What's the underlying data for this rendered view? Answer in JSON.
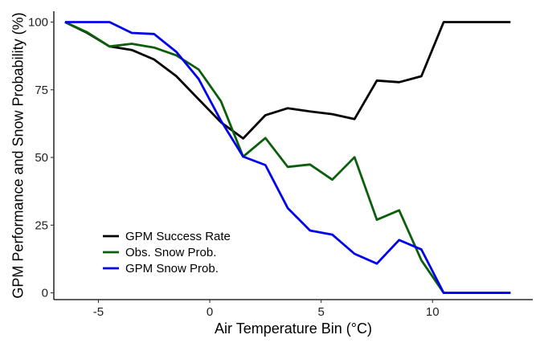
{
  "chart_data": {
    "type": "line",
    "title": "",
    "xlabel": "Air Temperature Bin (°C)",
    "ylabel": "GPM Performance and Snow Probability (%)",
    "xlim": [
      -7,
      14.5
    ],
    "ylim": [
      -2.5,
      104
    ],
    "x_ticks": [
      -5,
      0,
      5,
      10
    ],
    "y_ticks": [
      0,
      25,
      50,
      75,
      100
    ],
    "grid": false,
    "legend_position": "bottom-left",
    "x": [
      -6.5,
      -5.5,
      -4.5,
      -3.5,
      -2.5,
      -1.5,
      -0.5,
      0.5,
      1.5,
      2.5,
      3.5,
      4.5,
      5.5,
      6.5,
      7.5,
      8.5,
      9.5,
      10.5,
      11.5,
      12.5,
      13.5
    ],
    "series": [
      {
        "name": "GPM Success Rate",
        "color": "#000000",
        "values": [
          100,
          96,
          91,
          89.7,
          86.2,
          80,
          71.5,
          63,
          57,
          65.6,
          68.2,
          67,
          66,
          64.2,
          78.4,
          77.8,
          80,
          100,
          100,
          100,
          100
        ]
      },
      {
        "name": "Obs. Snow Prob.",
        "color": "#0b5e0b",
        "values": [
          100,
          96.2,
          91,
          92,
          90.6,
          87.7,
          82.5,
          70.8,
          50.3,
          57.2,
          46.5,
          47.4,
          41.8,
          50.1,
          27,
          30.5,
          12,
          0,
          0,
          0,
          0
        ]
      },
      {
        "name": "GPM Snow Prob.",
        "color": "#0000ee",
        "values": [
          100,
          100,
          100,
          96,
          95.6,
          89,
          79,
          63.6,
          50.3,
          47.2,
          31.3,
          23,
          21.5,
          14.4,
          10.8,
          19.5,
          16,
          0,
          0,
          0,
          0
        ]
      }
    ]
  }
}
